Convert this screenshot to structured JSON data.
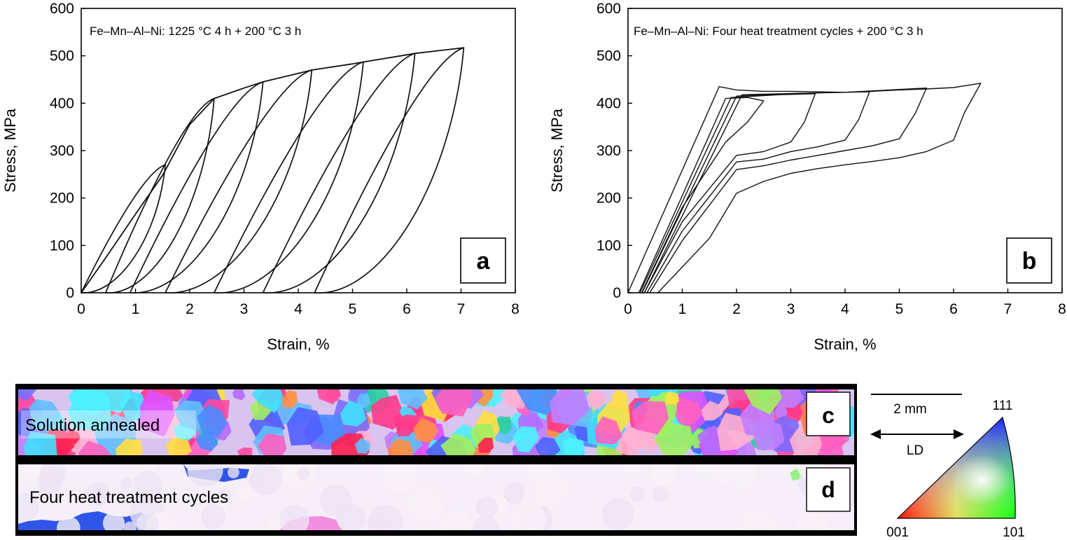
{
  "chart_data": [
    {
      "panel": "a",
      "type": "line",
      "title": "Fe–Mn–Al–Ni: 1225 °C 4 h + 200 °C 3 h",
      "xlabel": "Strain, %",
      "ylabel": "Stress, MPa",
      "xlim": [
        0,
        8
      ],
      "ylim": [
        0,
        600
      ],
      "xticks": [
        "0",
        "1",
        "2",
        "3",
        "4",
        "5",
        "6",
        "7",
        "8"
      ],
      "yticks": [
        "0",
        "100",
        "200",
        "300",
        "400",
        "500",
        "600"
      ],
      "grid": false,
      "legend": "none",
      "envelope": [
        [
          0,
          0
        ],
        [
          0.5,
          82
        ],
        [
          1.0,
          166
        ],
        [
          1.5,
          248
        ],
        [
          2.0,
          355
        ],
        [
          2.45,
          410
        ],
        [
          3.0,
          432
        ],
        [
          3.35,
          445
        ],
        [
          4.0,
          463
        ],
        [
          4.25,
          470
        ],
        [
          5.0,
          483
        ],
        [
          5.2,
          487
        ],
        [
          6.0,
          502
        ],
        [
          6.15,
          505
        ],
        [
          7.05,
          517
        ]
      ],
      "cycles": [
        {
          "peak": [
            1.55,
            270
          ],
          "zero_strain": 0.0
        },
        {
          "peak": [
            2.45,
            410
          ],
          "zero_strain": 0.45
        },
        {
          "peak": [
            3.35,
            445
          ],
          "zero_strain": 0.9
        },
        {
          "peak": [
            4.25,
            470
          ],
          "zero_strain": 1.55
        },
        {
          "peak": [
            5.2,
            487
          ],
          "zero_strain": 2.45
        },
        {
          "peak": [
            6.15,
            505
          ],
          "zero_strain": 3.35
        },
        {
          "peak": [
            7.05,
            517
          ],
          "zero_strain": 4.3
        }
      ]
    },
    {
      "panel": "b",
      "type": "line",
      "title": "Fe–Mn–Al–Ni: Four heat treatment cycles + 200 °C 3 h",
      "xlabel": "Strain, %",
      "ylabel": "Stress, MPa",
      "xlim": [
        0,
        8
      ],
      "ylim": [
        0,
        600
      ],
      "xticks": [
        "0",
        "1",
        "2",
        "3",
        "4",
        "5",
        "6",
        "7",
        "8"
      ],
      "yticks": [
        "0",
        "100",
        "200",
        "300",
        "400",
        "500",
        "600"
      ],
      "grid": false,
      "legend": "none",
      "series": [
        {
          "values": [
            [
              0,
              0
            ],
            [
              1.68,
              435
            ],
            [
              2.0,
              428
            ],
            [
              2.5,
              425
            ],
            [
              3.0,
              425
            ],
            [
              3.5,
              424
            ],
            [
              4.0,
              423
            ],
            [
              4.5,
              425
            ],
            [
              5.0,
              428
            ],
            [
              5.5,
              430
            ],
            [
              6.0,
              433
            ],
            [
              6.5,
              442
            ],
            [
              6.2,
              380
            ],
            [
              6.0,
              322
            ],
            [
              5.5,
              298
            ],
            [
              5.0,
              285
            ],
            [
              4.5,
              277
            ],
            [
              4.0,
              270
            ],
            [
              3.5,
              262
            ],
            [
              3.0,
              252
            ],
            [
              2.5,
              235
            ],
            [
              2.0,
              210
            ],
            [
              1.5,
              115
            ],
            [
              0.55,
              0
            ]
          ]
        },
        {
          "values": [
            [
              0.2,
              0
            ],
            [
              1.8,
              410
            ],
            [
              2.2,
              412
            ],
            [
              2.5,
              405
            ],
            [
              2.2,
              360
            ],
            [
              1.8,
              318
            ],
            [
              1.0,
              180
            ],
            [
              0.25,
              0
            ]
          ]
        },
        {
          "values": [
            [
              0.22,
              0
            ],
            [
              1.9,
              412
            ],
            [
              2.8,
              418
            ],
            [
              3.45,
              420
            ],
            [
              3.25,
              360
            ],
            [
              3.0,
              318
            ],
            [
              2.5,
              298
            ],
            [
              2.0,
              290
            ],
            [
              1.0,
              150
            ],
            [
              0.3,
              0
            ]
          ]
        },
        {
          "values": [
            [
              0.26,
              0
            ],
            [
              2.0,
              415
            ],
            [
              3.5,
              422
            ],
            [
              4.45,
              424
            ],
            [
              4.25,
              365
            ],
            [
              4.0,
              322
            ],
            [
              3.5,
              308
            ],
            [
              3.0,
              298
            ],
            [
              2.5,
              282
            ],
            [
              2.0,
              276
            ],
            [
              1.0,
              130
            ],
            [
              0.35,
              0
            ]
          ]
        },
        {
          "values": [
            [
              0.3,
              0
            ],
            [
              2.1,
              418
            ],
            [
              4.0,
              423
            ],
            [
              5.5,
              432
            ],
            [
              5.3,
              380
            ],
            [
              5.0,
              325
            ],
            [
              4.5,
              310
            ],
            [
              4.0,
              300
            ],
            [
              3.5,
              290
            ],
            [
              3.0,
              280
            ],
            [
              2.5,
              268
            ],
            [
              2.0,
              260
            ],
            [
              1.0,
              110
            ],
            [
              0.4,
              0
            ]
          ]
        }
      ]
    }
  ],
  "ebsd": {
    "panel_c": {
      "letter": "c",
      "label": "Solution annealed"
    },
    "panel_d": {
      "letter": "d",
      "label": "Four heat treatment cycles"
    },
    "scale_bar": "2 mm",
    "direction": "LD",
    "ipf_labels": {
      "top": "111",
      "left": "001",
      "right": "101"
    }
  },
  "panel_letters": {
    "a": "a",
    "b": "b"
  },
  "colors": {
    "line": "#111111",
    "ipf_red": "#ff0000",
    "ipf_green": "#00ff00",
    "ipf_blue": "#0000ff",
    "matrix_d": "#f6eef8"
  }
}
